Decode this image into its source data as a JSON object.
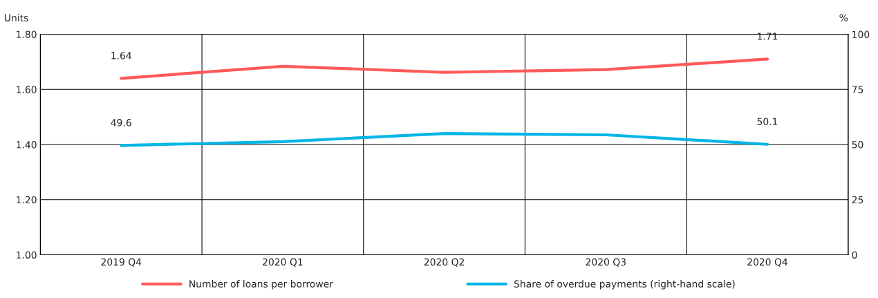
{
  "chart_data": {
    "type": "line",
    "ylabel": "Units",
    "y2label": "%",
    "categories": [
      "2019 Q4",
      "2020 Q1",
      "2020 Q2",
      "2020 Q3",
      "2020 Q4"
    ],
    "series": [
      {
        "name": "Number of loans per borrower",
        "color": "#ff5a5a",
        "values": [
          1.64,
          1.684,
          1.662,
          1.672,
          1.71
        ],
        "value_labels": [
          "1.64",
          null,
          null,
          null,
          "1.71"
        ]
      },
      {
        "name": "Share of overdue payments (right-hand scale)",
        "color": "#00b4e6",
        "axis": "y2",
        "values": [
          49.6,
          51.3,
          55.0,
          54.4,
          50.1
        ],
        "value_labels": [
          "49.6",
          null,
          null,
          null,
          "50.1"
        ]
      }
    ],
    "ylim": [
      1.0,
      1.8
    ],
    "yticks": [
      {
        "value": 1.0,
        "label": "1.00"
      },
      {
        "value": 1.2,
        "label": "1.20"
      },
      {
        "value": 1.4,
        "label": "1.40"
      },
      {
        "value": 1.6,
        "label": "1.60"
      },
      {
        "value": 1.8,
        "label": "1.80"
      }
    ],
    "y2lim": [
      0,
      100
    ],
    "y2ticks": [
      0,
      25,
      50,
      75,
      100
    ],
    "grid": true,
    "legend": "bottom",
    "marker": "none",
    "line_style": "solid"
  }
}
